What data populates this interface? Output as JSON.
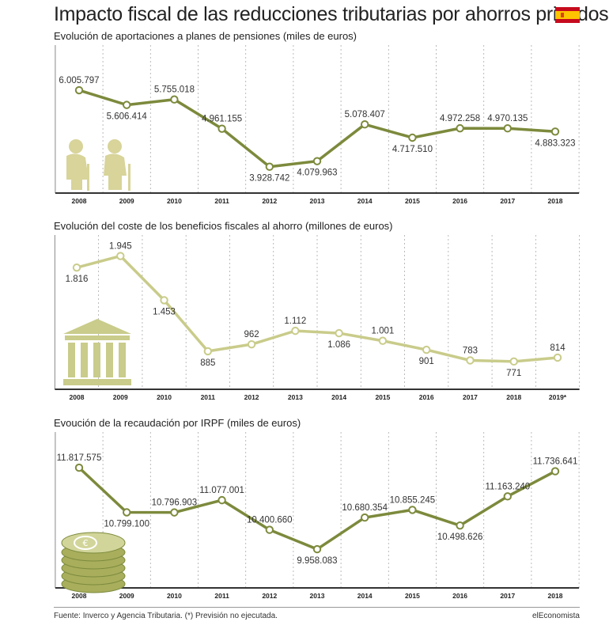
{
  "title": "Impacto fiscal de las reducciones tributarias por ahorros privados",
  "footer": {
    "source": "Fuente: Inverco y Agencia Tributaria. (*) Previsión no ejecutada.",
    "brand": "elEconomista"
  },
  "colors": {
    "dark_olive": "#7c8a3c",
    "light_olive": "#c9cc8a",
    "marker_fill": "#ffffff",
    "flag_red": "#c60b1e",
    "flag_yellow": "#ffc400"
  },
  "icons": [
    "spain-flag-icon",
    "elderly-couple-icon",
    "bank-building-icon",
    "euro-coins-icon"
  ],
  "chart_data": [
    {
      "type": "line",
      "title": "Evolución de aportaciones a planes de pensiones (miles de euros)",
      "categories": [
        "2008",
        "2009",
        "2010",
        "2011",
        "2012",
        "2013",
        "2014",
        "2015",
        "2016",
        "2017",
        "2018"
      ],
      "values": [
        6005797,
        5606414,
        5755018,
        4961155,
        3928742,
        4079963,
        5078407,
        4717510,
        4972258,
        4970135,
        4883323
      ],
      "labels": [
        "6.005.797",
        "5.606.414",
        "5.755.018",
        "4.961.155",
        "3.928.742",
        "4.079.963",
        "5.078.407",
        "4.717.510",
        "4.972.258",
        "4.970.135",
        "4.883.323"
      ],
      "label_pos": [
        "above",
        "below",
        "above",
        "above",
        "below",
        "below",
        "above",
        "below",
        "above",
        "above",
        "below"
      ],
      "ylim": [
        3600000,
        6200000
      ],
      "color": "#7c8a3c",
      "icon": "elderly-couple-icon"
    },
    {
      "type": "line",
      "title": "Evolución del coste de los beneficios fiscales al ahorro (millones de euros)",
      "categories": [
        "2008",
        "2009",
        "2010",
        "2011",
        "2012",
        "2013",
        "2014",
        "2015",
        "2016",
        "2017",
        "2018",
        "2019*"
      ],
      "values": [
        1816,
        1945,
        1453,
        885,
        962,
        1112,
        1086,
        1001,
        901,
        783,
        771,
        814
      ],
      "labels": [
        "1.816",
        "1.945",
        "1.453",
        "885",
        "962",
        "1.112",
        "1.086",
        "1.001",
        "901",
        "783",
        "771",
        "814"
      ],
      "label_pos": [
        "below",
        "above",
        "below",
        "below",
        "above",
        "above",
        "below",
        "above",
        "below",
        "above",
        "below",
        "above"
      ],
      "ylim": [
        620,
        2020
      ],
      "color": "#c9cc8a",
      "icon": "bank-building-icon"
    },
    {
      "type": "line",
      "title": "Evoución de la recaudación por IRPF (miles de euros)",
      "categories": [
        "2008",
        "2009",
        "2010",
        "2011",
        "2012",
        "2013",
        "2014",
        "2015",
        "2016",
        "2017",
        "2018"
      ],
      "values": [
        11817575,
        10799100,
        10796903,
        11077001,
        10400660,
        9958083,
        10680354,
        10855245,
        10498626,
        11163240,
        11736641
      ],
      "labels": [
        "11.817.575",
        "10.799.100",
        "10.796.903",
        "11.077.001",
        "10.400.660",
        "9.958.083",
        "10.680.354",
        "10.855.245",
        "10.498.626",
        "11.163.240",
        "11.736.641"
      ],
      "label_pos": [
        "above",
        "below",
        "above",
        "above",
        "above",
        "below",
        "above",
        "above",
        "below",
        "above",
        "above"
      ],
      "ylim": [
        9400000,
        12000000
      ],
      "color": "#7c8a3c",
      "icon": "euro-coins-icon"
    }
  ]
}
